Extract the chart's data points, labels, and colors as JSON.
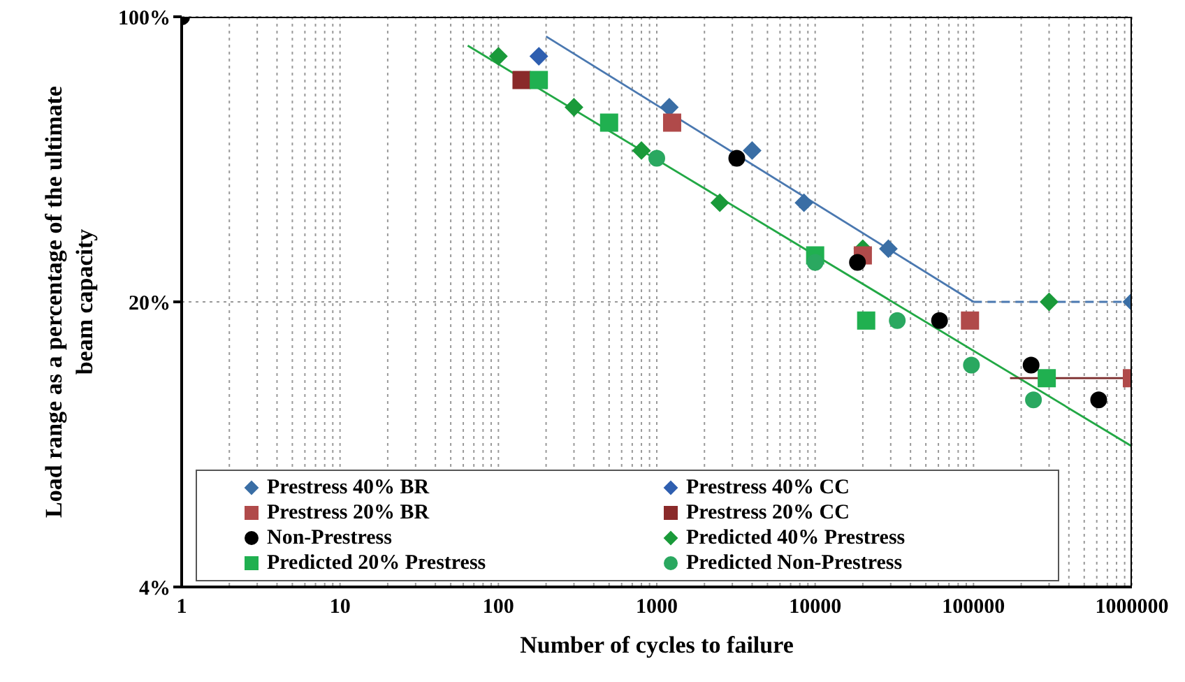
{
  "chart_data": {
    "type": "scatter",
    "xlabel": "Number of cycles to failure",
    "ylabel": "Load range as a percentage of the ultimate beam capacity",
    "log": "xy",
    "grid": true,
    "legend": "bottom",
    "xlim": [
      1,
      1000000
    ],
    "ylim": [
      4,
      100
    ],
    "xticks": [
      1,
      {
        "value": 2,
        "label": null
      },
      {
        "value": 3,
        "label": null
      },
      {
        "value": 4,
        "label": null
      },
      {
        "value": 5,
        "label": null
      },
      {
        "value": 6,
        "label": null
      },
      {
        "value": 7,
        "label": null
      },
      {
        "value": 8,
        "label": null
      },
      {
        "value": 9,
        "label": null
      },
      10,
      {
        "value": 20,
        "label": null
      },
      {
        "value": 30,
        "label": null
      },
      {
        "value": 40,
        "label": null
      },
      {
        "value": 50,
        "label": null
      },
      {
        "value": 60,
        "label": null
      },
      {
        "value": 70,
        "label": null
      },
      {
        "value": 80,
        "label": null
      },
      {
        "value": 90,
        "label": null
      },
      100,
      {
        "value": 200,
        "label": null
      },
      {
        "value": 300,
        "label": null
      },
      {
        "value": 400,
        "label": null
      },
      {
        "value": 500,
        "label": null
      },
      {
        "value": 600,
        "label": null
      },
      {
        "value": 700,
        "label": null
      },
      {
        "value": 800,
        "label": null
      },
      {
        "value": 900,
        "label": null
      },
      1000,
      {
        "value": 2000,
        "label": null
      },
      {
        "value": 3000,
        "label": null
      },
      {
        "value": 4000,
        "label": null
      },
      {
        "value": 5000,
        "label": null
      },
      {
        "value": 6000,
        "label": null
      },
      {
        "value": 7000,
        "label": null
      },
      {
        "value": 8000,
        "label": null
      },
      {
        "value": 9000,
        "label": null
      },
      10000,
      {
        "value": 20000,
        "label": null
      },
      {
        "value": 30000,
        "label": null
      },
      {
        "value": 40000,
        "label": null
      },
      {
        "value": 50000,
        "label": null
      },
      {
        "value": 60000,
        "label": null
      },
      {
        "value": 70000,
        "label": null
      },
      {
        "value": 80000,
        "label": null
      },
      {
        "value": 90000,
        "label": null
      },
      100000,
      {
        "value": 200000,
        "label": null
      },
      {
        "value": 300000,
        "label": null
      },
      {
        "value": 400000,
        "label": null
      },
      {
        "value": 500000,
        "label": null
      },
      {
        "value": 600000,
        "label": null
      },
      {
        "value": 700000,
        "label": null
      },
      {
        "value": 800000,
        "label": null
      },
      {
        "value": 900000,
        "label": null
      },
      1000000
    ],
    "yticks": [
      {
        "value": 4,
        "label": "4%"
      },
      {
        "value": 20,
        "label": "20%"
      },
      {
        "value": 100,
        "label": "100%"
      }
    ],
    "series": [
      {
        "type": "line",
        "color": "#4a78b0",
        "marker": "none",
        "x": [
          200,
          100000
        ],
        "values": [
          89.5,
          20
        ]
      },
      {
        "type": "line",
        "color": "#22a845",
        "marker": "none",
        "x": [
          64,
          1000000
        ],
        "values": [
          85,
          8.85
        ]
      },
      {
        "type": "line",
        "color": "#7a2a2a",
        "marker": "none",
        "x": [
          170000,
          1000000
        ],
        "values": [
          13,
          13
        ]
      },
      {
        "name": "Prestress 40% BR",
        "color": "#3a6ea5",
        "marker": "diamond",
        "x": [
          1200,
          4000,
          8500,
          29000,
          1000000
        ],
        "values": [
          60,
          47,
          35,
          27,
          20
        ]
      },
      {
        "name": "Prestress 40% CC",
        "color": "#2f5fb0",
        "marker": "diamond",
        "x": [
          180
        ],
        "values": [
          80
        ]
      },
      {
        "name": "Prestress 20% BR",
        "color": "#b04a4a",
        "marker": "square",
        "x": [
          1250,
          20000,
          95000,
          1000000
        ],
        "values": [
          55,
          26,
          18,
          13
        ]
      },
      {
        "name": "Prestress 20% CC",
        "color": "#8a2a2a",
        "marker": "square",
        "x": [
          140
        ],
        "values": [
          70
        ]
      },
      {
        "name": "Non-Prestress",
        "color": "#000000",
        "marker": "circle",
        "x": [
          1,
          3200,
          18500,
          61000,
          231000,
          617000
        ],
        "values": [
          100,
          45,
          25,
          18,
          14,
          11.5
        ]
      },
      {
        "name": "Predicted 40% Prestress",
        "color": "#1a9a3a",
        "marker": "diamond",
        "x": [
          100,
          300,
          800,
          2500,
          20000,
          300000
        ],
        "values": [
          80,
          60,
          47,
          35,
          27,
          20
        ]
      },
      {
        "name": "Predicted 20% Prestress",
        "color": "#20b050",
        "marker": "square",
        "x": [
          180,
          500,
          10000,
          21000,
          290000
        ],
        "values": [
          70,
          55,
          26,
          18,
          13
        ]
      },
      {
        "name": "Predicted Non-Prestress",
        "color": "#2aa860",
        "marker": "circle",
        "x": [
          1000,
          10000,
          33000,
          97000,
          239000
        ],
        "values": [
          45,
          25,
          18,
          14,
          11.5
        ]
      }
    ]
  }
}
